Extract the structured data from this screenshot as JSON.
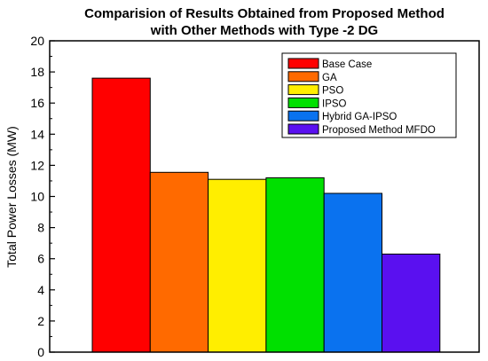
{
  "chart_data": {
    "type": "bar",
    "title_line1": "Comparision of Results Obtained from Proposed Method",
    "title_line2": "with Other Methods with Type -2 DG",
    "xlabel": "",
    "ylabel": "Total Power Losses (MW)",
    "ylim": [
      0,
      20
    ],
    "yticks": [
      "0",
      "2",
      "4",
      "6",
      "8",
      "10",
      "12",
      "14",
      "16",
      "18",
      "20"
    ],
    "grid": false,
    "legend_position": "top-right",
    "series": [
      {
        "name": "Base Case",
        "value": 17.6,
        "color": "#ff0000"
      },
      {
        "name": "GA",
        "value": 11.55,
        "color": "#ff6a00"
      },
      {
        "name": "PSO",
        "value": 11.1,
        "color": "#ffee00"
      },
      {
        "name": "IPSO",
        "value": 11.2,
        "color": "#00e000"
      },
      {
        "name": "Hybrid GA-IPSO",
        "value": 10.2,
        "color": "#0a72ef"
      },
      {
        "name": "Proposed Method MFDO",
        "value": 6.3,
        "color": "#5a10f0"
      }
    ]
  }
}
